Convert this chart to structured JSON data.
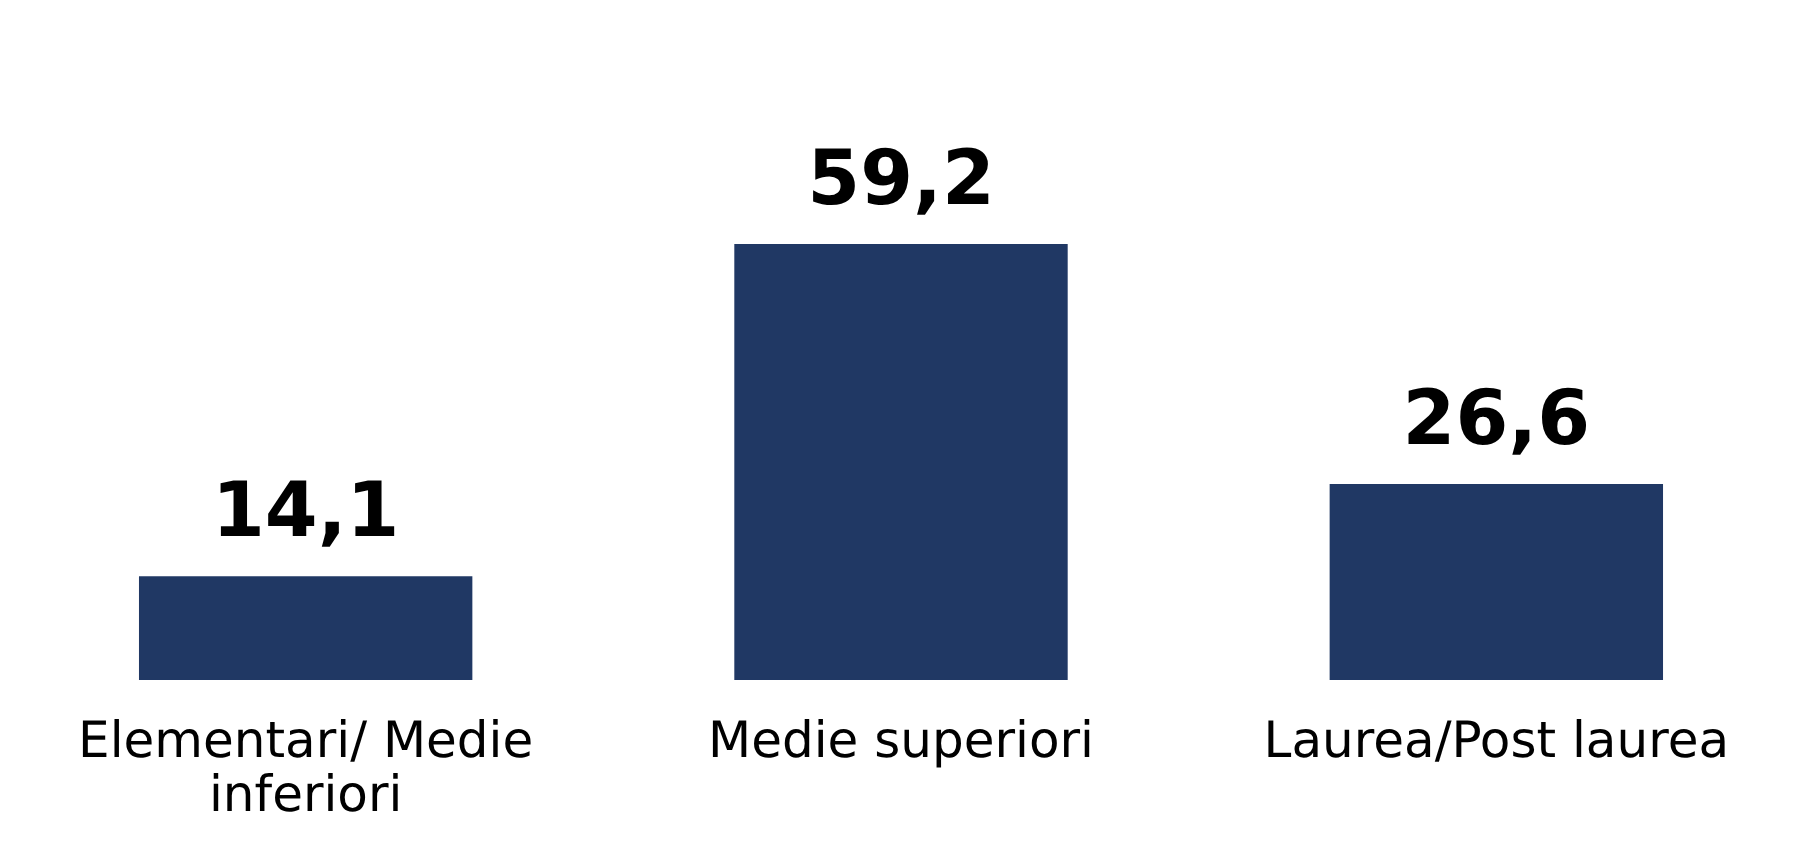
{
  "chart_data": {
    "type": "bar",
    "categories": [
      "Elementari/ Medie inferiori",
      "Medie superiori",
      "Laurea/Post laurea"
    ],
    "values": [
      14.1,
      59.2,
      26.6
    ],
    "color": "#203864",
    "value_labels": [
      "14,1",
      "59,2",
      "26,6"
    ]
  }
}
